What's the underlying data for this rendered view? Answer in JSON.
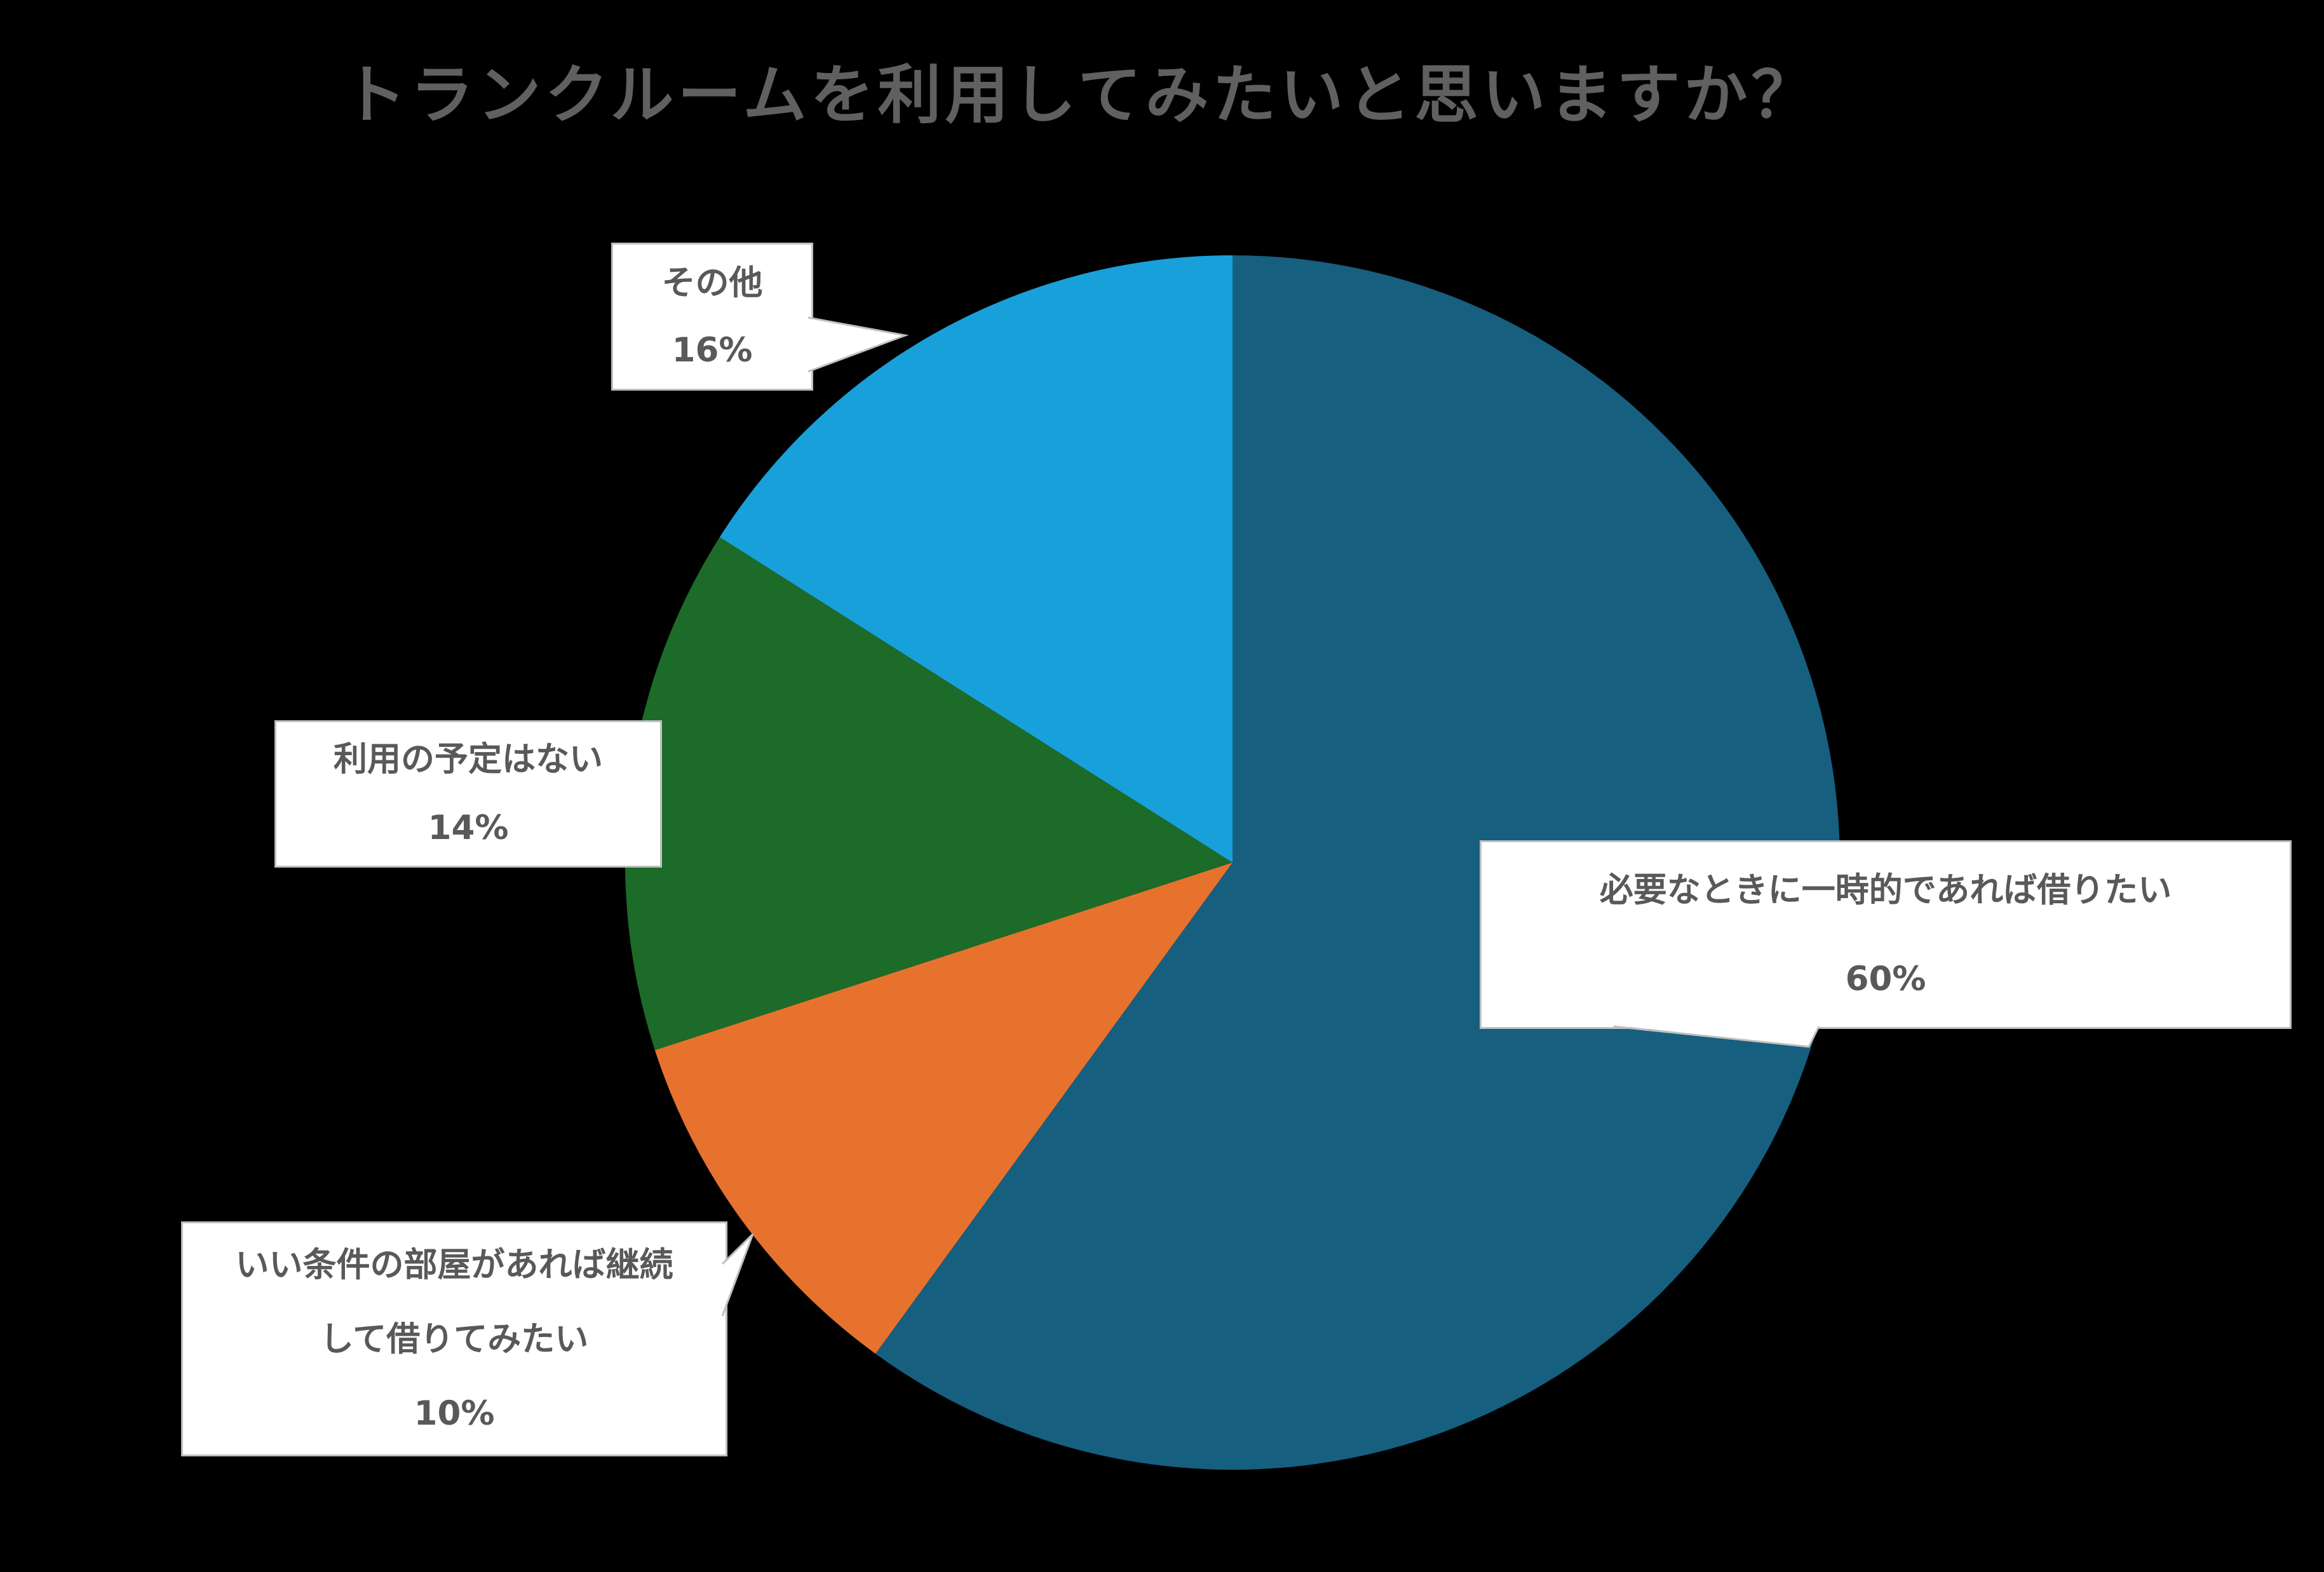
{
  "title": "トランクルームを利用してみたいと思いますか？",
  "colors": {
    "background": "#000000",
    "title_text": "#606060",
    "label_text": "#595959",
    "label_box_fill": "#FFFFFF",
    "label_box_border": "#BFBFBF",
    "slice_temporary": "#165F7F",
    "slice_continuous": "#E7722E",
    "slice_no_plan": "#1C6B28",
    "slice_other": "#18A0DB"
  },
  "chart_data": {
    "type": "pie",
    "title": "トランクルームを利用してみたいと思いますか？",
    "start_angle_deg": 0,
    "direction": "clockwise",
    "legend_position": "none",
    "slices": [
      {
        "label": "必要なときに一時的であれば借りたい",
        "value_pct": 60,
        "color": "#165F7F"
      },
      {
        "label": "いい条件の部屋があれば継続して借りてみたい",
        "value_pct": 10,
        "color": "#E7722E"
      },
      {
        "label": "利用の予定はない",
        "value_pct": 14,
        "color": "#1C6B28"
      },
      {
        "label": "その他",
        "value_pct": 16,
        "color": "#18A0DB"
      }
    ]
  },
  "labels": {
    "other": {
      "line1": "その他",
      "line2": "16%"
    },
    "no_plan": {
      "line1": "利用の予定はない",
      "line2": "14%"
    },
    "continuous": {
      "line1": "いい条件の部屋があれば継続",
      "line2": "して借りてみたい",
      "line3": "10%"
    },
    "temporary": {
      "line1": "必要なときに一時的であれば借りたい",
      "line2": "60%"
    }
  }
}
